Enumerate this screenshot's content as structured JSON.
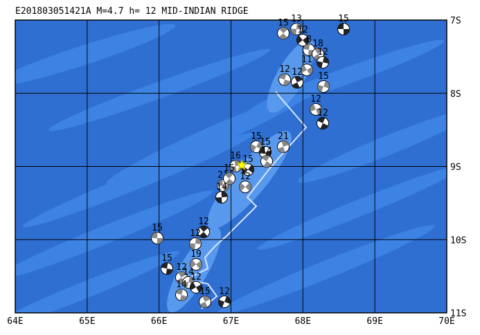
{
  "header": {
    "title": "E201803051421A M=4.7 h= 12 MID-INDIAN RIDGE"
  },
  "map": {
    "lon_labels": [
      "64E",
      "65E",
      "66E",
      "67E",
      "68E",
      "69E",
      "70E"
    ],
    "lat_labels": [
      "7S",
      "8S",
      "9S",
      "10S",
      "11S"
    ],
    "event_depths": [
      "15",
      "15",
      "13",
      "12",
      "8",
      "18",
      "12",
      "11",
      "12",
      "12",
      "15",
      "12",
      "12",
      "21",
      "15",
      "15",
      "14",
      "16",
      "15",
      "21",
      "15",
      "14",
      "12",
      "15",
      "12",
      "12",
      "19",
      "15",
      "12",
      "14",
      "12",
      "14",
      "15",
      "12"
    ]
  }
}
